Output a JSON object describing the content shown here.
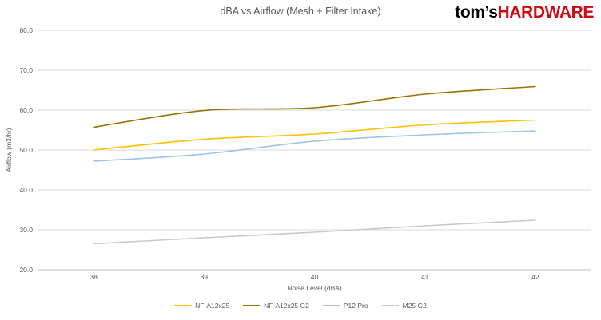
{
  "brand": {
    "tom": "tom’s",
    "hardware": "HARDWARE",
    "hardware_color": "#d10a11",
    "tom_color": "#000000"
  },
  "chart_data": {
    "type": "line",
    "title": "dBA vs Airflow (Mesh + Filter Intake)",
    "xlabel": "Noise Level (dBA)",
    "ylabel": "Airflow (m3/hr)",
    "categories": [
      "38",
      "39",
      "40",
      "41",
      "42"
    ],
    "y_ticks": [
      "20.0",
      "30.0",
      "40.0",
      "50.0",
      "60.0",
      "70.0",
      "80.0"
    ],
    "ylim": [
      20,
      80
    ],
    "grid": true,
    "legend_position": "bottom",
    "colors": {
      "gridline": "#d9d9d9",
      "axis_line": "#bfbfbf",
      "tick_text": "#595959"
    },
    "series": [
      {
        "name": "NF-A12x25",
        "color": "#FFC000",
        "values": [
          50.0,
          52.7,
          54.0,
          56.3,
          57.5
        ]
      },
      {
        "name": "NF-A12x25 G2",
        "color": "#997300",
        "values": [
          55.7,
          59.9,
          60.6,
          64.0,
          65.9
        ]
      },
      {
        "name": "P12 Pro",
        "color": "#9DC3E6",
        "values": [
          47.2,
          49.0,
          52.2,
          53.8,
          54.8
        ]
      },
      {
        "name": "M25 G2",
        "color": "#C9C9C9",
        "values": [
          26.5,
          28.0,
          29.4,
          31.0,
          32.4
        ]
      }
    ]
  }
}
